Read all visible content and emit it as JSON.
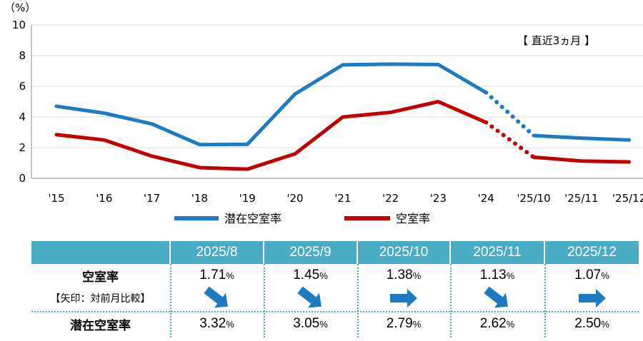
{
  "chart_data": {
    "type": "line",
    "y_unit": "（%）",
    "ylim": [
      0,
      10
    ],
    "yticks": [
      "0",
      "2",
      "4",
      "6",
      "8",
      "10"
    ],
    "categories": [
      "'15",
      "'16",
      "'17",
      "'18",
      "'19",
      "'20",
      "'21",
      "'22",
      "'23",
      "'24",
      "'25/10",
      "'25/11",
      "'25/12"
    ],
    "series": [
      {
        "name": "潜在空室率",
        "color": "#1f7bc1",
        "values": [
          4.7,
          4.25,
          3.55,
          2.2,
          2.22,
          5.5,
          7.4,
          7.45,
          7.42,
          5.6,
          2.79,
          2.62,
          2.5
        ]
      },
      {
        "name": "空室率",
        "color": "#c00000",
        "values": [
          2.85,
          2.5,
          1.45,
          0.7,
          0.6,
          1.6,
          4.0,
          4.3,
          5.0,
          3.65,
          1.38,
          1.13,
          1.07
        ]
      }
    ],
    "dotted_segment": [
      9,
      10
    ],
    "note": "【 直近3ヵ月 】",
    "legend_position": "bottom",
    "grid": "horizontal"
  },
  "table": {
    "months": [
      "2025/8",
      "2025/9",
      "2025/10",
      "2025/11",
      "2025/12"
    ],
    "vacancy_label": "空室率",
    "arrow_label": "【矢印：対前月比較】",
    "potential_label": "潜在空室率",
    "vacancy_values": [
      "1.71",
      "1.45",
      "1.38",
      "1.13",
      "1.07"
    ],
    "potential_values": [
      "3.32",
      "3.05",
      "2.79",
      "2.62",
      "2.50"
    ],
    "percent_sign": "%",
    "arrows": [
      "down-right",
      "down-right",
      "right",
      "down-right",
      "right"
    ],
    "arrow_color": "#1f7bc1"
  }
}
